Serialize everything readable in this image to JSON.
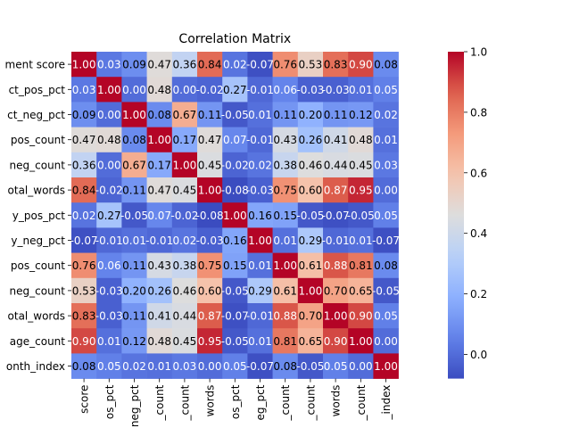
{
  "chart_data": {
    "type": "heatmap",
    "title": "Correlation Matrix",
    "row_labels": [
      "ment score",
      "ct_pos_pct",
      "ct_neg_pct",
      "pos_count",
      "neg_count",
      "otal_words",
      "y_pos_pct",
      "y_neg_pct",
      "pos_count",
      "neg_count",
      "otal_words",
      "age_count",
      "onth_index"
    ],
    "col_labels": [
      "score",
      "os_pct",
      "neg_pct",
      "_count",
      "_count",
      "words",
      "os_pct",
      "eg_pct",
      "_count",
      "_count",
      "words",
      "_count",
      "_index"
    ],
    "values": [
      [
        1.0,
        0.03,
        0.09,
        0.47,
        0.36,
        0.84,
        0.02,
        -0.07,
        0.76,
        0.53,
        0.83,
        0.9,
        0.08
      ],
      [
        0.03,
        1.0,
        0.0,
        0.48,
        -0.0,
        -0.02,
        0.27,
        -0.01,
        0.06,
        -0.03,
        -0.03,
        0.01,
        0.05
      ],
      [
        0.09,
        0.0,
        1.0,
        0.08,
        0.67,
        0.11,
        -0.05,
        0.01,
        0.11,
        0.2,
        0.11,
        0.12,
        0.02
      ],
      [
        0.47,
        0.48,
        0.08,
        1.0,
        0.17,
        0.47,
        0.07,
        -0.01,
        0.43,
        0.26,
        0.41,
        0.48,
        0.01
      ],
      [
        0.36,
        -0.0,
        0.67,
        0.17,
        1.0,
        0.45,
        -0.02,
        0.02,
        0.38,
        0.46,
        0.44,
        0.45,
        0.03
      ],
      [
        0.84,
        -0.02,
        0.11,
        0.47,
        0.45,
        1.0,
        -0.08,
        -0.03,
        0.75,
        0.6,
        0.87,
        0.95,
        -0.0
      ],
      [
        0.02,
        0.27,
        -0.05,
        0.07,
        -0.02,
        -0.08,
        1.0,
        0.16,
        0.15,
        -0.05,
        -0.07,
        -0.05,
        0.05
      ],
      [
        -0.07,
        -0.01,
        0.01,
        -0.01,
        0.02,
        -0.03,
        0.16,
        1.0,
        0.01,
        0.29,
        -0.01,
        0.01,
        -0.07
      ],
      [
        0.76,
        0.06,
        0.11,
        0.43,
        0.38,
        0.75,
        0.15,
        0.01,
        1.0,
        0.61,
        0.88,
        0.81,
        0.08
      ],
      [
        0.53,
        -0.03,
        0.2,
        0.26,
        0.46,
        0.6,
        -0.05,
        0.29,
        0.61,
        1.0,
        0.7,
        0.65,
        -0.05
      ],
      [
        0.83,
        -0.03,
        0.11,
        0.41,
        0.44,
        0.87,
        -0.07,
        -0.01,
        0.88,
        0.7,
        1.0,
        0.9,
        0.05
      ],
      [
        0.9,
        0.01,
        0.12,
        0.48,
        0.45,
        0.95,
        -0.05,
        0.01,
        0.81,
        0.65,
        0.9,
        1.0,
        0.0
      ],
      [
        0.08,
        0.05,
        0.02,
        0.01,
        0.03,
        -0.0,
        0.05,
        -0.07,
        0.08,
        -0.05,
        0.05,
        0.0,
        1.0
      ]
    ],
    "colormap": "coolwarm",
    "vmin": -0.08,
    "vmax": 1.0,
    "colorbar_ticks": [
      "0.0",
      "0.2",
      "0.4",
      "0.6",
      "0.8",
      "1.0"
    ],
    "colorbar_tick_values": [
      0.0,
      0.2,
      0.4,
      0.6,
      0.8,
      1.0
    ]
  }
}
